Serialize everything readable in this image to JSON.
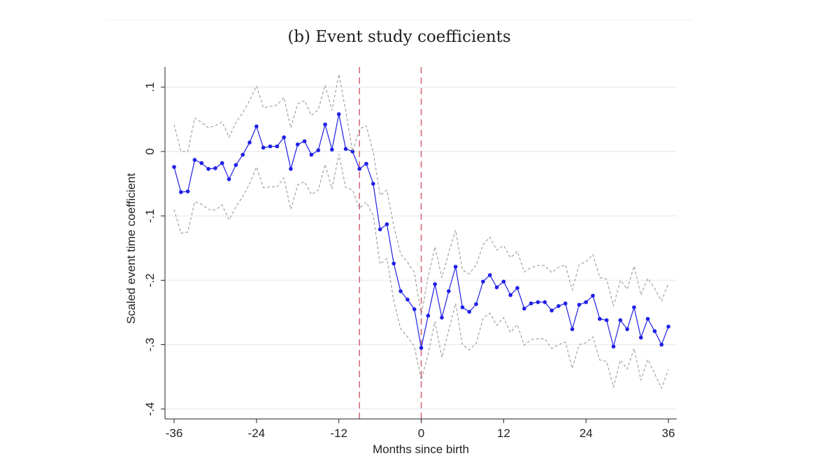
{
  "chart_data": {
    "type": "line",
    "title": "(b) Event study coefficients",
    "xlabel": "Months since birth",
    "ylabel": "Scaled event time coefficient",
    "xlim": [
      -37,
      37
    ],
    "ylim": [
      -0.41,
      0.13
    ],
    "xticks": [
      -36,
      -24,
      -12,
      0,
      12,
      24,
      36
    ],
    "xtick_labels": [
      "-36",
      "-24",
      "-12",
      "0",
      "12",
      "24",
      "36"
    ],
    "yticks": [
      0.1,
      0,
      -0.1,
      -0.2,
      -0.3,
      -0.4
    ],
    "ytick_labels": [
      ".1",
      "0",
      "-.1",
      "-.2",
      "-.3",
      "-.4"
    ],
    "vlines": [
      -9,
      0
    ],
    "grid": true,
    "series": [
      {
        "name": "Coefficient",
        "color": "#1f1fe6",
        "x": [
          -36,
          -35,
          -34,
          -33,
          -32,
          -31,
          -30,
          -29,
          -28,
          -27,
          -26,
          -25,
          -24,
          -23,
          -22,
          -21,
          -20,
          -19,
          -18,
          -17,
          -16,
          -15,
          -14,
          -13,
          -12,
          -11,
          -10,
          -9,
          -8,
          -7,
          -6,
          -5,
          -4,
          -3,
          -2,
          -1,
          0,
          1,
          2,
          3,
          4,
          5,
          6,
          7,
          8,
          9,
          10,
          11,
          12,
          13,
          14,
          15,
          16,
          17,
          18,
          19,
          20,
          21,
          22,
          23,
          24,
          25,
          26,
          27,
          28,
          29,
          30,
          31,
          32,
          33,
          34,
          35,
          36
        ],
        "y": [
          -0.024,
          -0.063,
          -0.062,
          -0.013,
          -0.018,
          -0.027,
          -0.026,
          -0.018,
          -0.043,
          -0.021,
          -0.005,
          0.014,
          0.039,
          0.006,
          0.008,
          0.008,
          0.022,
          -0.027,
          0.011,
          0.016,
          -0.005,
          0.002,
          0.042,
          0.003,
          0.058,
          0.004,
          0.0,
          -0.027,
          -0.019,
          -0.05,
          -0.121,
          -0.113,
          -0.174,
          -0.217,
          -0.23,
          -0.245,
          -0.305,
          -0.255,
          -0.206,
          -0.258,
          -0.217,
          -0.179,
          -0.242,
          -0.249,
          -0.237,
          -0.202,
          -0.192,
          -0.211,
          -0.202,
          -0.223,
          -0.212,
          -0.244,
          -0.236,
          -0.234,
          -0.234,
          -0.247,
          -0.24,
          -0.236,
          -0.276,
          -0.238,
          -0.234,
          -0.224,
          -0.26,
          -0.262,
          -0.303,
          -0.262,
          -0.276,
          -0.242,
          -0.289,
          -0.26,
          -0.279,
          -0.3,
          -0.272
        ]
      },
      {
        "name": "Upper 95% CI",
        "color": "#9a9a9a",
        "x": [
          -36,
          -35,
          -34,
          -33,
          -32,
          -31,
          -30,
          -29,
          -28,
          -27,
          -26,
          -25,
          -24,
          -23,
          -22,
          -21,
          -20,
          -19,
          -18,
          -17,
          -16,
          -15,
          -14,
          -13,
          -12,
          -11,
          -10,
          -9,
          -8,
          -7,
          -6,
          -5,
          -4,
          -3,
          -2,
          -1,
          0,
          1,
          2,
          3,
          4,
          5,
          6,
          7,
          8,
          9,
          10,
          11,
          12,
          13,
          14,
          15,
          16,
          17,
          18,
          19,
          20,
          21,
          22,
          23,
          24,
          25,
          26,
          27,
          28,
          29,
          30,
          31,
          32,
          33,
          34,
          35,
          36
        ],
        "y": [
          0.042,
          0.0,
          0.0,
          0.052,
          0.045,
          0.037,
          0.04,
          0.046,
          0.022,
          0.045,
          0.06,
          0.079,
          0.102,
          0.068,
          0.07,
          0.072,
          0.084,
          0.037,
          0.074,
          0.079,
          0.056,
          0.065,
          0.103,
          0.064,
          0.12,
          0.063,
          0.0,
          0.035,
          0.04,
          -0.001,
          -0.068,
          -0.06,
          -0.116,
          -0.159,
          -0.172,
          -0.188,
          -0.255,
          -0.195,
          -0.148,
          -0.196,
          -0.157,
          -0.122,
          -0.184,
          -0.19,
          -0.176,
          -0.145,
          -0.133,
          -0.153,
          -0.146,
          -0.165,
          -0.155,
          -0.187,
          -0.18,
          -0.177,
          -0.177,
          -0.188,
          -0.18,
          -0.176,
          -0.215,
          -0.176,
          -0.171,
          -0.16,
          -0.196,
          -0.198,
          -0.24,
          -0.2,
          -0.214,
          -0.178,
          -0.223,
          -0.197,
          -0.213,
          -0.232,
          -0.205
        ]
      },
      {
        "name": "Lower 95% CI",
        "color": "#9a9a9a",
        "x": [
          -36,
          -35,
          -34,
          -33,
          -32,
          -31,
          -30,
          -29,
          -28,
          -27,
          -26,
          -25,
          -24,
          -23,
          -22,
          -21,
          -20,
          -19,
          -18,
          -17,
          -16,
          -15,
          -14,
          -13,
          -12,
          -11,
          -10,
          -9,
          -8,
          -7,
          -6,
          -5,
          -4,
          -3,
          -2,
          -1,
          0,
          1,
          2,
          3,
          4,
          5,
          6,
          7,
          8,
          9,
          10,
          11,
          12,
          13,
          14,
          15,
          16,
          17,
          18,
          19,
          20,
          21,
          22,
          23,
          24,
          25,
          26,
          27,
          28,
          29,
          30,
          31,
          32,
          33,
          34,
          35,
          36
        ],
        "y": [
          -0.09,
          -0.127,
          -0.125,
          -0.078,
          -0.082,
          -0.09,
          -0.091,
          -0.083,
          -0.106,
          -0.086,
          -0.07,
          -0.05,
          -0.024,
          -0.056,
          -0.055,
          -0.055,
          -0.041,
          -0.09,
          -0.052,
          -0.047,
          -0.067,
          -0.06,
          -0.02,
          -0.058,
          -0.004,
          -0.056,
          -0.06,
          -0.088,
          -0.079,
          -0.099,
          -0.175,
          -0.166,
          -0.232,
          -0.275,
          -0.288,
          -0.303,
          -0.355,
          -0.315,
          -0.264,
          -0.32,
          -0.278,
          -0.236,
          -0.3,
          -0.308,
          -0.298,
          -0.259,
          -0.251,
          -0.27,
          -0.258,
          -0.281,
          -0.269,
          -0.301,
          -0.292,
          -0.291,
          -0.291,
          -0.306,
          -0.3,
          -0.296,
          -0.337,
          -0.3,
          -0.297,
          -0.288,
          -0.324,
          -0.326,
          -0.366,
          -0.324,
          -0.338,
          -0.306,
          -0.355,
          -0.323,
          -0.345,
          -0.368,
          -0.339
        ]
      }
    ]
  }
}
